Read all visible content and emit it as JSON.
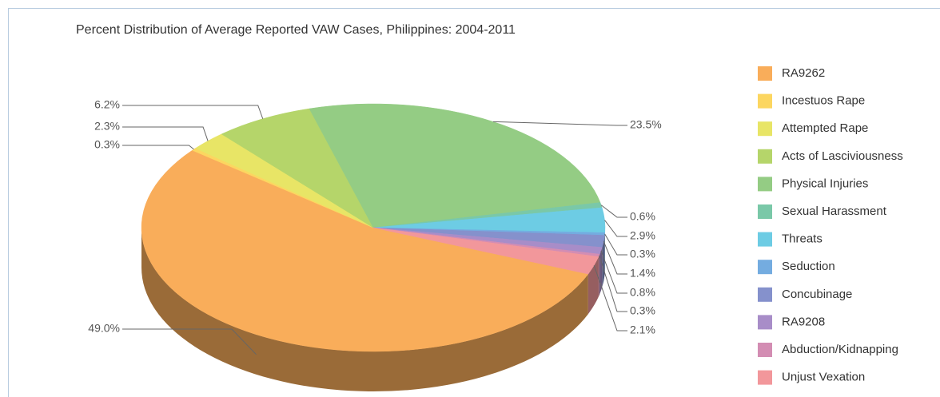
{
  "chart_data": {
    "type": "pie",
    "title": "Percent Distribution of Average Reported VAW Cases, Philippines: 2004-2011",
    "categories": [
      "RA9262",
      "Incestuos Rape",
      "Attempted Rape",
      "Acts of Lasciviousness",
      "Physical Injuries",
      "Sexual Harassment",
      "Threats",
      "Seduction",
      "Concubinage",
      "RA9208",
      "Abduction/Kidnapping",
      "Unjust Vexation"
    ],
    "values": [
      49.0,
      0.3,
      2.3,
      6.2,
      23.5,
      0.6,
      2.9,
      0.3,
      1.4,
      0.8,
      0.3,
      2.1
    ],
    "value_labels": [
      "49.0%",
      "0.3%",
      "2.3%",
      "6.2%",
      "23.5%",
      "0.6%",
      "2.9%",
      "0.3%",
      "1.4%",
      "0.8%",
      "0.3%",
      "2.1%"
    ],
    "colors": [
      "#f9ad5a",
      "#fcd660",
      "#e8e566",
      "#b5d56a",
      "#94cc84",
      "#7ac8a8",
      "#6dcce4",
      "#74ace0",
      "#8591cc",
      "#a88dc8",
      "#d38db3",
      "#f2979b"
    ],
    "legend": "right"
  }
}
